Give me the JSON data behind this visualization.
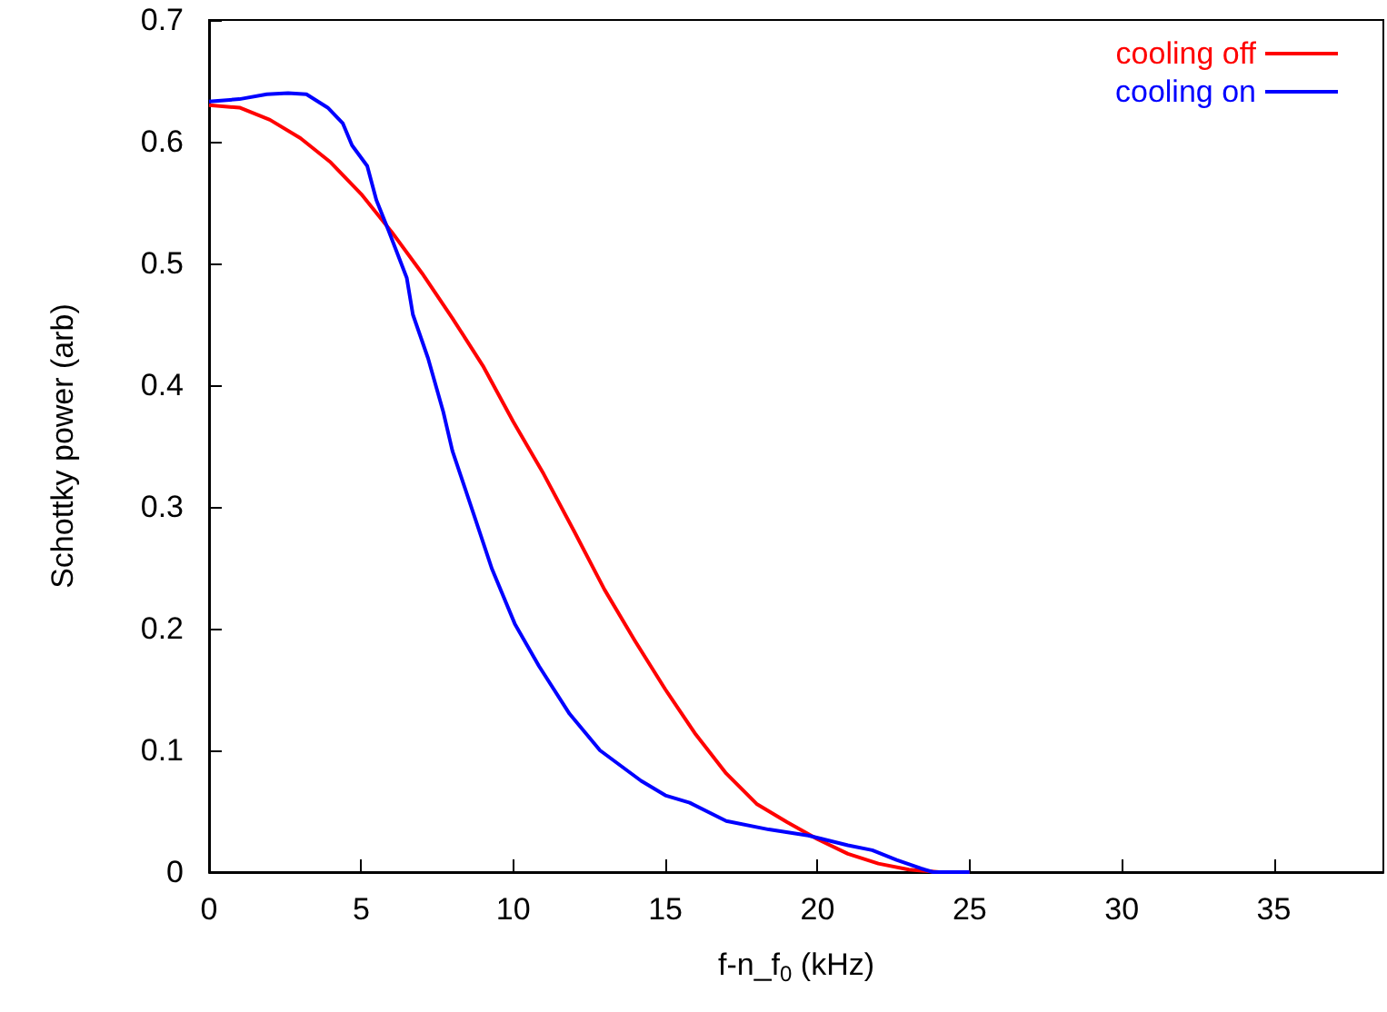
{
  "chart_data": {
    "type": "line",
    "xlabel": "f-n_f$_{0}$ (kHz)",
    "ylabel": "Schottky power (arb)",
    "xlim": [
      0,
      38.6
    ],
    "ylim": [
      0,
      0.7
    ],
    "xticks": [
      0,
      5,
      10,
      15,
      20,
      25,
      30,
      35
    ],
    "yticks": [
      0,
      0.1,
      0.2,
      0.3,
      0.4,
      0.5,
      0.6,
      0.7
    ],
    "grid": false,
    "legend": "top right",
    "marker": "none",
    "line_style": "solid",
    "series": [
      {
        "name": "cooling off",
        "color": "#ff0000",
        "x": [
          0,
          1,
          2,
          3,
          4,
          5,
          6,
          7,
          8,
          9,
          10,
          11,
          12,
          13,
          14,
          15,
          16,
          17,
          18,
          19,
          20,
          21,
          22,
          23,
          24,
          25
        ],
        "values": [
          0.63,
          0.628,
          0.618,
          0.603,
          0.583,
          0.557,
          0.526,
          0.492,
          0.455,
          0.416,
          0.37,
          0.327,
          0.28,
          0.232,
          0.19,
          0.15,
          0.113,
          0.081,
          0.056,
          0.041,
          0.027,
          0.015,
          0.007,
          0.002,
          0,
          0
        ]
      },
      {
        "name": "cooling on",
        "color": "#0000ff",
        "x": [
          0,
          1,
          1.9,
          2.6,
          3.2,
          3.9,
          4.4,
          4.7,
          5.2,
          5.5,
          5.9,
          6.5,
          6.7,
          7.2,
          7.7,
          8.0,
          8.7,
          9.3,
          10.05,
          10.85,
          11.85,
          12.85,
          14.2,
          15.0,
          15.8,
          17.0,
          18.4,
          19.7,
          21.0,
          21.8,
          22.6,
          23.4,
          23.8,
          25.0
        ],
        "values": [
          0.633,
          0.635,
          0.639,
          0.64,
          0.639,
          0.628,
          0.615,
          0.597,
          0.58,
          0.552,
          0.527,
          0.488,
          0.458,
          0.422,
          0.378,
          0.346,
          0.294,
          0.249,
          0.204,
          0.169,
          0.13,
          0.1,
          0.075,
          0.063,
          0.057,
          0.042,
          0.035,
          0.03,
          0.022,
          0.018,
          0.01,
          0.003,
          0,
          0
        ]
      }
    ]
  }
}
